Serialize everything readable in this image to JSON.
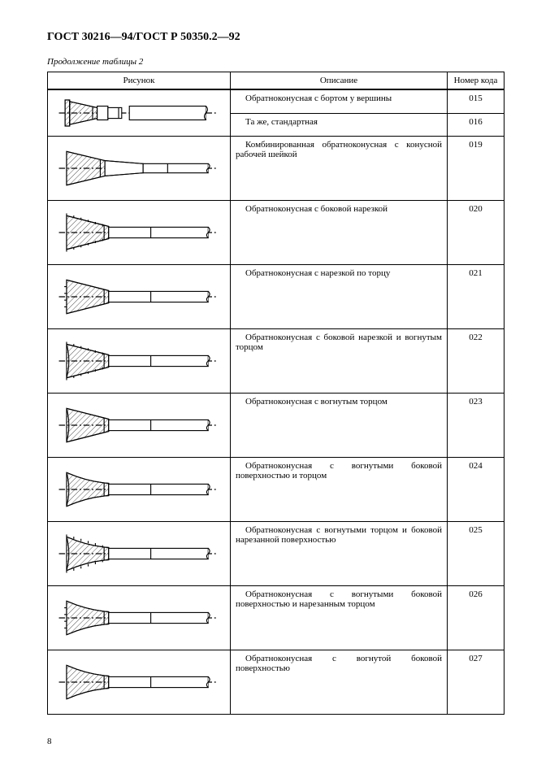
{
  "document": {
    "title": "ГОСТ 30216—94/ГОСТ Р 50350.2—92",
    "table_caption": "Продолжение таблицы 2",
    "page_number": "8"
  },
  "table": {
    "headers": {
      "figure": "Рисунок",
      "description": "Описание",
      "code": "Номер кода"
    },
    "rows": [
      {
        "id": "r015",
        "description": "Обратноконусная с бортом у вершины",
        "code": "015",
        "share_figure": true,
        "short": true
      },
      {
        "id": "r016",
        "description": "Та же, стандартная",
        "code": "016",
        "share_figure": "prev",
        "short": true
      },
      {
        "id": "r019",
        "description": "Комбинированная обратноконусная с конусной рабочей шейкой",
        "code": "019"
      },
      {
        "id": "r020",
        "description": "Обратноконусная с боковой нарезкой",
        "code": "020"
      },
      {
        "id": "r021",
        "description": "Обратноконусная с нарезкой по торцу",
        "code": "021"
      },
      {
        "id": "r022",
        "description": "Обратноконусная с боковой нарезкой и вогнутым торцом",
        "code": "022"
      },
      {
        "id": "r023",
        "description": "Обратноконусная с вогнутым торцом",
        "code": "023"
      },
      {
        "id": "r024",
        "description": "Обратноконусная с вогнутыми боковой поверхностью и торцом",
        "code": "024"
      },
      {
        "id": "r025",
        "description": "Обратноконусная с вогнутыми торцом и боковой нарезанной поверхностью",
        "code": "025"
      },
      {
        "id": "r026",
        "description": "Обратноконусная с вогнутыми боковой поверхностью и нарезанным торцом",
        "code": "026"
      },
      {
        "id": "r027",
        "description": "Обратноконусная с вогнутой боковой поверхностью",
        "code": "027"
      }
    ]
  },
  "style": {
    "stroke": "#000000",
    "hatch_spacing": 5,
    "stroke_width": 1.2,
    "centerline_dash": "8 3 2 3"
  }
}
